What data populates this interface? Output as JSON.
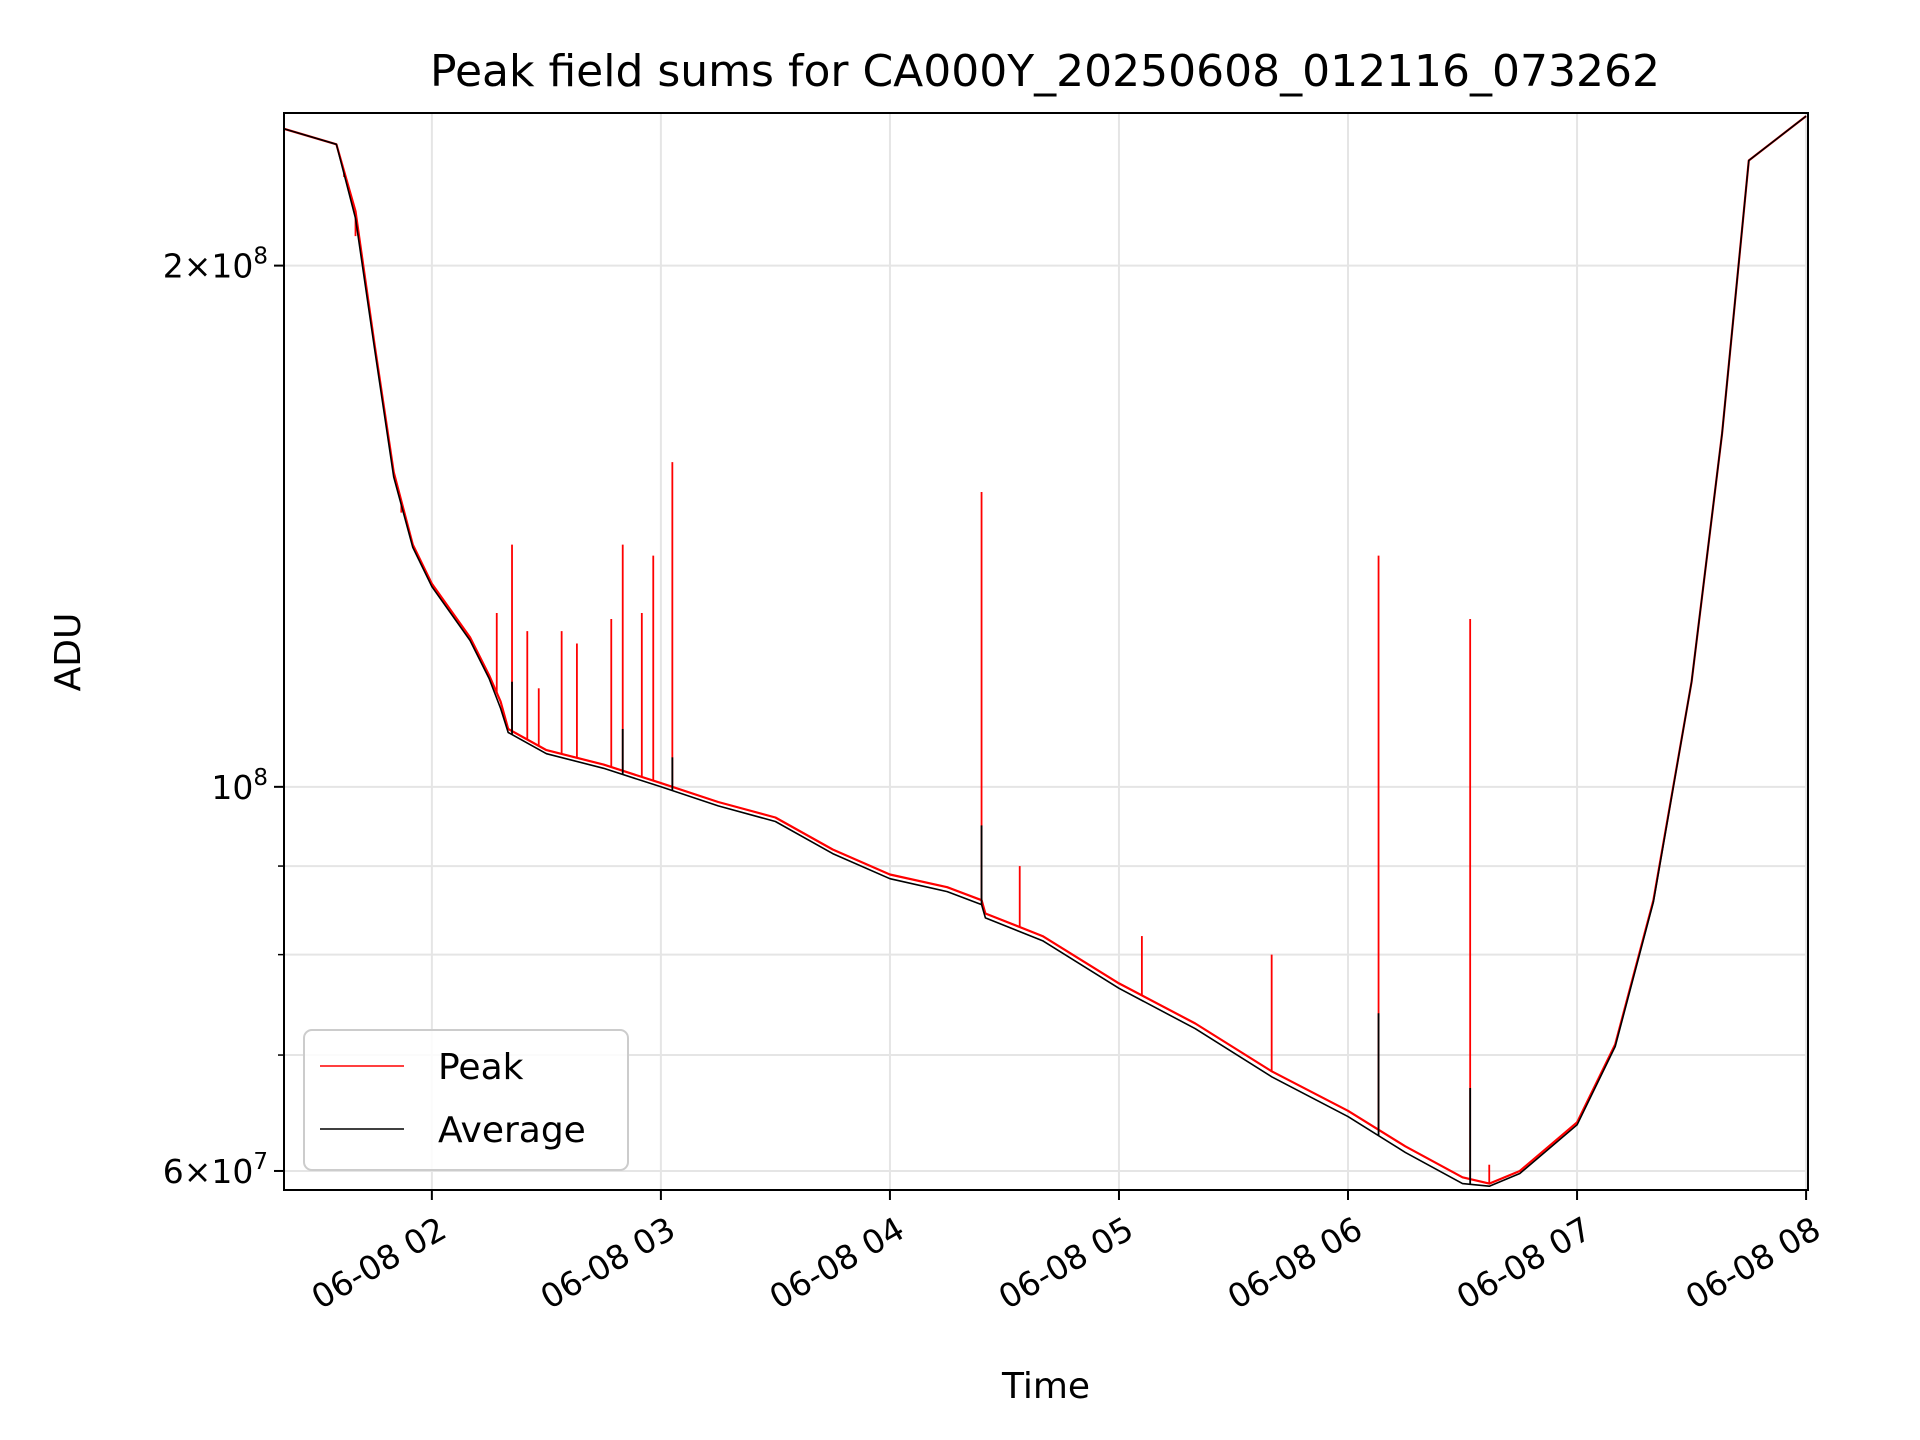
{
  "chart_data": {
    "type": "line",
    "title": "Peak field sums for CA000Y_20250608_012116_073262",
    "xlabel": "Time",
    "ylabel": "ADU",
    "yscale": "log",
    "ylim": [
      58500000,
      245000000
    ],
    "xlim": [
      "2025-06-08 01:21:16",
      "2025-06-08 08:00:30"
    ],
    "grid": true,
    "legend_position": "lower-left",
    "x_ticks": [
      {
        "value": "2025-06-08 02:00",
        "label": "06-08 02"
      },
      {
        "value": "2025-06-08 03:00",
        "label": "06-08 03"
      },
      {
        "value": "2025-06-08 04:00",
        "label": "06-08 04"
      },
      {
        "value": "2025-06-08 05:00",
        "label": "06-08 05"
      },
      {
        "value": "2025-06-08 06:00",
        "label": "06-08 06"
      },
      {
        "value": "2025-06-08 07:00",
        "label": "06-08 07"
      },
      {
        "value": "2025-06-08 08:00",
        "label": "06-08 08"
      }
    ],
    "y_ticks": [
      {
        "value": 60000000,
        "base": "6",
        "exp": "7"
      },
      {
        "value": 100000000,
        "base": "",
        "exp": "8"
      },
      {
        "value": 200000000,
        "base": "2",
        "exp": "8"
      }
    ],
    "y_minor_ticks": [
      70000000,
      80000000,
      90000000
    ],
    "series": [
      {
        "name": "Peak",
        "color": "#ff0000",
        "x": [
          "2025-06-08 01:21",
          "2025-06-08 01:35",
          "2025-06-08 01:40",
          "2025-06-08 01:45",
          "2025-06-08 01:50",
          "2025-06-08 01:55",
          "2025-06-08 02:00",
          "2025-06-08 02:10",
          "2025-06-08 02:15",
          "2025-06-08 02:18",
          "2025-06-08 02:20",
          "2025-06-08 02:30",
          "2025-06-08 02:45",
          "2025-06-08 03:00",
          "2025-06-08 03:15",
          "2025-06-08 03:30",
          "2025-06-08 03:45",
          "2025-06-08 04:00",
          "2025-06-08 04:15",
          "2025-06-08 04:24",
          "2025-06-08 04:25",
          "2025-06-08 04:40",
          "2025-06-08 05:00",
          "2025-06-08 05:20",
          "2025-06-08 05:40",
          "2025-06-08 06:00",
          "2025-06-08 06:15",
          "2025-06-08 06:30",
          "2025-06-08 06:37",
          "2025-06-08 06:45",
          "2025-06-08 07:00",
          "2025-06-08 07:10",
          "2025-06-08 07:20",
          "2025-06-08 07:30",
          "2025-06-08 07:38",
          "2025-06-08 07:45",
          "2025-06-08 08:00"
        ],
        "y": [
          240000000,
          235000000,
          215000000,
          180000000,
          152000000,
          138000000,
          131000000,
          122000000,
          116000000,
          112000000,
          108000000,
          105000000,
          103000000,
          100500000,
          98000000,
          96000000,
          92000000,
          89000000,
          87500000,
          86000000,
          84500000,
          82000000,
          77000000,
          73000000,
          68500000,
          65000000,
          62000000,
          59500000,
          59000000,
          60000000,
          64000000,
          71000000,
          86000000,
          115000000,
          160000000,
          230000000,
          244000000
        ],
        "spikes": [
          {
            "x": "2025-06-08 01:37",
            "y": 225000000
          },
          {
            "x": "2025-06-08 01:40",
            "y": 208000000
          },
          {
            "x": "2025-06-08 01:52",
            "y": 144000000
          },
          {
            "x": "2025-06-08 02:17",
            "y": 126000000
          },
          {
            "x": "2025-06-08 02:21",
            "y": 138000000
          },
          {
            "x": "2025-06-08 02:25",
            "y": 123000000
          },
          {
            "x": "2025-06-08 02:28",
            "y": 114000000
          },
          {
            "x": "2025-06-08 02:34",
            "y": 123000000
          },
          {
            "x": "2025-06-08 02:38",
            "y": 121000000
          },
          {
            "x": "2025-06-08 02:47",
            "y": 125000000
          },
          {
            "x": "2025-06-08 02:50",
            "y": 138000000
          },
          {
            "x": "2025-06-08 02:55",
            "y": 126000000
          },
          {
            "x": "2025-06-08 02:58",
            "y": 136000000
          },
          {
            "x": "2025-06-08 03:03",
            "y": 154000000
          },
          {
            "x": "2025-06-08 04:24",
            "y": 148000000
          },
          {
            "x": "2025-06-08 04:34",
            "y": 90000000
          },
          {
            "x": "2025-06-08 05:06",
            "y": 82000000
          },
          {
            "x": "2025-06-08 05:40",
            "y": 80000000
          },
          {
            "x": "2025-06-08 06:08",
            "y": 136000000
          },
          {
            "x": "2025-06-08 06:32",
            "y": 125000000
          },
          {
            "x": "2025-06-08 06:37",
            "y": 60500000
          }
        ]
      },
      {
        "name": "Average",
        "color": "#000000",
        "x": [
          "2025-06-08 01:21",
          "2025-06-08 01:35",
          "2025-06-08 01:40",
          "2025-06-08 01:45",
          "2025-06-08 01:50",
          "2025-06-08 01:55",
          "2025-06-08 02:00",
          "2025-06-08 02:10",
          "2025-06-08 02:15",
          "2025-06-08 02:18",
          "2025-06-08 02:20",
          "2025-06-08 02:30",
          "2025-06-08 02:45",
          "2025-06-08 03:00",
          "2025-06-08 03:15",
          "2025-06-08 03:30",
          "2025-06-08 03:45",
          "2025-06-08 04:00",
          "2025-06-08 04:15",
          "2025-06-08 04:24",
          "2025-06-08 04:25",
          "2025-06-08 04:40",
          "2025-06-08 05:00",
          "2025-06-08 05:20",
          "2025-06-08 05:40",
          "2025-06-08 06:00",
          "2025-06-08 06:15",
          "2025-06-08 06:30",
          "2025-06-08 06:37",
          "2025-06-08 06:45",
          "2025-06-08 07:00",
          "2025-06-08 07:10",
          "2025-06-08 07:20",
          "2025-06-08 07:30",
          "2025-06-08 07:38",
          "2025-06-08 07:45",
          "2025-06-08 08:00"
        ],
        "y": [
          240000000,
          235000000,
          213000000,
          179000000,
          151000000,
          137500000,
          130500000,
          121500000,
          115500000,
          111000000,
          107500000,
          104500000,
          102500000,
          100000000,
          97500000,
          95500000,
          91500000,
          88500000,
          87000000,
          85500000,
          84000000,
          81500000,
          76500000,
          72500000,
          68000000,
          64500000,
          61500000,
          59000000,
          58800000,
          59800000,
          63800000,
          70800000,
          85800000,
          115000000,
          160000000,
          230000000,
          244000000
        ],
        "spikes": [
          {
            "x": "2025-06-08 02:21",
            "y": 115000000
          },
          {
            "x": "2025-06-08 02:50",
            "y": 108000000
          },
          {
            "x": "2025-06-08 03:03",
            "y": 104000000
          },
          {
            "x": "2025-06-08 04:24",
            "y": 95000000
          },
          {
            "x": "2025-06-08 06:08",
            "y": 74000000
          },
          {
            "x": "2025-06-08 06:32",
            "y": 67000000
          }
        ]
      }
    ]
  }
}
